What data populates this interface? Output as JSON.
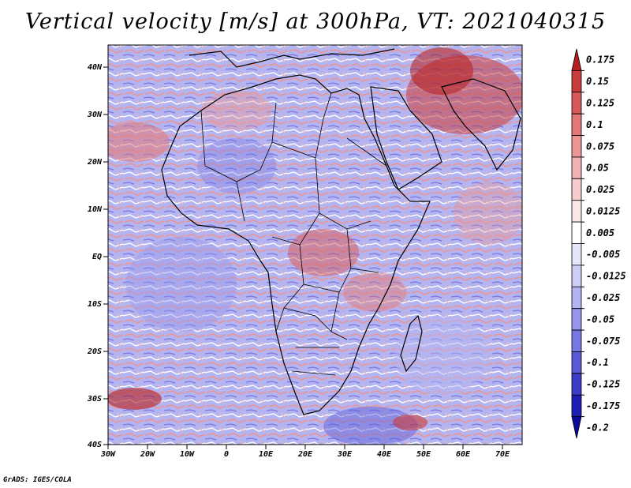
{
  "title": "Vertical velocity [m/s] at 300hPa, VT: 2021040315",
  "credit": "GrADS: IGES/COLA",
  "map": {
    "region": "Africa",
    "lat_labels": [
      "40N",
      "30N",
      "20N",
      "10N",
      "EQ",
      "10S",
      "20S",
      "30S",
      "40S"
    ],
    "lon_labels": [
      "30W",
      "20W",
      "10W",
      "0",
      "10E",
      "20E",
      "30E",
      "40E",
      "50E",
      "60E",
      "70E"
    ],
    "lat_range": [
      -40,
      44
    ],
    "lon_range": [
      -30,
      75
    ]
  },
  "colorbar": {
    "labels": [
      "0.175",
      "0.15",
      "0.125",
      "0.1",
      "0.075",
      "0.05",
      "0.025",
      "0.0125",
      "0.005",
      "-0.005",
      "-0.0125",
      "-0.025",
      "-0.05",
      "-0.075",
      "-0.1",
      "-0.125",
      "-0.175",
      "-0.2"
    ],
    "colors": [
      "#b41e1e",
      "#c83c3c",
      "#d75a5a",
      "#e27878",
      "#ea9696",
      "#f0b4b4",
      "#f5cdcd",
      "#fae6e6",
      "#ffffff",
      "#e6e6fa",
      "#cdcdf5",
      "#b4b4f0",
      "#9696ea",
      "#7878e2",
      "#5a5ad7",
      "#3c3cc8",
      "#1e1eb4",
      "#0a0a9b"
    ]
  }
}
